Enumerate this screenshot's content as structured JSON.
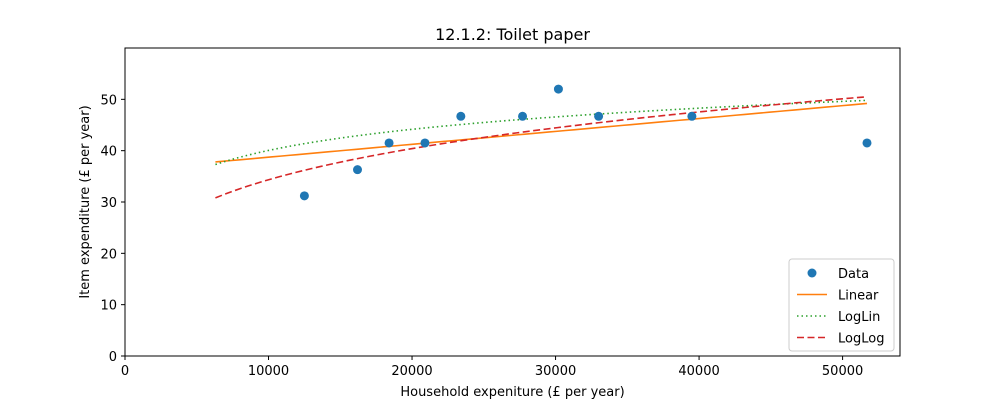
{
  "chart_data": {
    "type": "scatter",
    "title": "12.1.2: Toilet paper",
    "xlabel": "Household expeniture (£ per year)",
    "ylabel": "Item expenditure (£ per year)",
    "xlim": [
      0,
      54000
    ],
    "ylim": [
      0,
      60
    ],
    "xticks": [
      0,
      10000,
      20000,
      30000,
      40000,
      50000
    ],
    "yticks": [
      0,
      10,
      20,
      30,
      40,
      50
    ],
    "grid": false,
    "legend_position": "lower-right",
    "points": {
      "name": "Data",
      "color": "#1f77b4",
      "x": [
        12500,
        16200,
        18400,
        20900,
        23400,
        27700,
        30200,
        33000,
        39500,
        51700
      ],
      "y": [
        31.2,
        36.3,
        41.5,
        41.5,
        46.7,
        46.7,
        52.0,
        46.7,
        46.7,
        41.5
      ]
    },
    "fits": [
      {
        "name": "Linear",
        "kind": "linear",
        "color": "#ff7f0e",
        "dash": "solid",
        "x": [
          6300,
          51700
        ],
        "y": [
          37.8,
          49.2
        ]
      },
      {
        "name": "LogLin",
        "kind": "loglin",
        "color": "#2ca02c",
        "dash": "dotted",
        "x": [
          6300,
          51700
        ],
        "y": [
          37.3,
          49.8
        ]
      },
      {
        "name": "LogLog",
        "kind": "loglog",
        "color": "#d62728",
        "dash": "dashed",
        "x": [
          6300,
          51700
        ],
        "y": [
          30.8,
          50.5
        ]
      }
    ]
  }
}
